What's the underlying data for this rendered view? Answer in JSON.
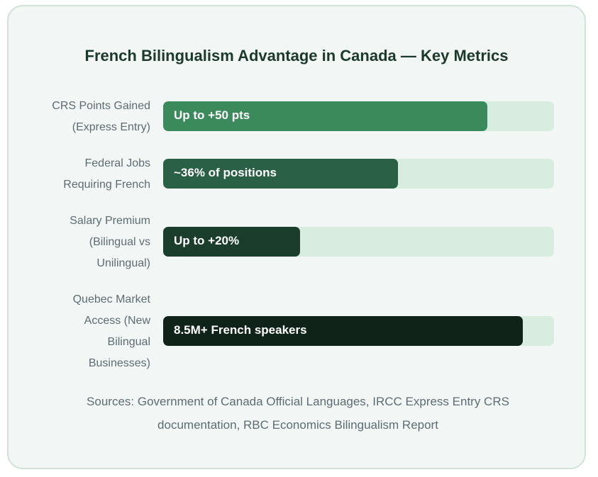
{
  "chart_data": {
    "type": "bar",
    "orientation": "horizontal",
    "title": "French Bilingualism Advantage in Canada — Key Metrics",
    "categories": [
      "CRS Points Gained (Express Entry)",
      "Federal Jobs Requiring French",
      "Salary Premium (Bilingual vs Unilingual)",
      "Quebec Market Access (New Bilingual Businesses)"
    ],
    "bars": [
      {
        "label_lines": [
          "CRS Points Gained",
          "(Express Entry)"
        ],
        "value_label": "Up to +50 pts",
        "fill_fraction": 0.83,
        "color": "#3a8a5c"
      },
      {
        "label_lines": [
          "Federal Jobs",
          "Requiring French"
        ],
        "value_label": "~36% of positions",
        "fill_fraction": 0.6,
        "color": "#2a6045"
      },
      {
        "label_lines": [
          "Salary Premium",
          "(Bilingual vs",
          "Unilingual)"
        ],
        "value_label": "Up to +20%",
        "fill_fraction": 0.35,
        "color": "#1a3d2c"
      },
      {
        "label_lines": [
          "Quebec Market",
          "Access (New",
          "Bilingual",
          "Businesses)"
        ],
        "value_label": "8.5M+ French speakers",
        "fill_fraction": 0.92,
        "color": "#0f2319"
      }
    ],
    "track_color": "#d8ece0",
    "grid": false,
    "legend": "none"
  },
  "source_lines": [
    "Sources: Government of Canada Official Languages, IRCC Express Entry CRS",
    "documentation, RBC Economics Bilingualism Report"
  ]
}
